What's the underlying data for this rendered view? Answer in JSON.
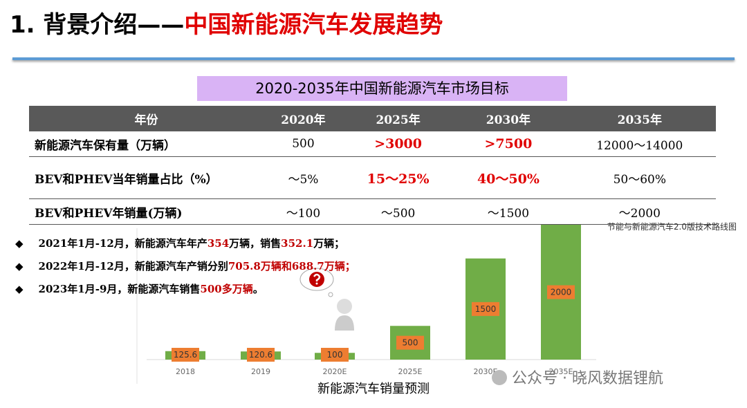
{
  "header": {
    "title_prefix": "1. 背景介绍——",
    "title_main": "中国新能源汽车发展趋势"
  },
  "table": {
    "title": "2020-2035年中国新能源汽车市场目标",
    "header": [
      "年份",
      "2020年",
      "2025年",
      "2030年",
      "2035年"
    ],
    "rows": [
      [
        "新能源汽车保有量（万辆）",
        "500",
        ">3000",
        ">7500",
        "12000～14000"
      ],
      [
        "BEV和PHEV当年销量占比（%）",
        "～5%",
        "15～25%",
        "40～50%",
        "50～60%"
      ],
      [
        "BEV和PHEV年销量(万辆)",
        "～100",
        "～500",
        "～1500",
        "～2000"
      ]
    ],
    "source": "节能与新能源汽车2.0版技术路线图"
  },
  "bullets": [
    [
      "2021年1月-12月，新能源汽车年产",
      "354",
      "万辆，销售",
      "352.1",
      "万辆；"
    ],
    [
      "2022年1月-12月，新能源汽车产销分别",
      "705.8万辆和688.7万辆；"
    ],
    [
      "2023年1月-9月，新能源汽车销售",
      "500多万辆",
      "。"
    ]
  ],
  "chart_data": {
    "type": "bar",
    "title": "新能源汽车销量预测",
    "categories": [
      "2018",
      "2019",
      "2020E",
      "2025E",
      "2030E",
      "2035E"
    ],
    "values": [
      125.6,
      120.6,
      100,
      500,
      1500,
      2000
    ],
    "color": "#70ad47",
    "label_color": "#ed7d31"
  },
  "watermark": "公众号 · 晓风数据锂航"
}
